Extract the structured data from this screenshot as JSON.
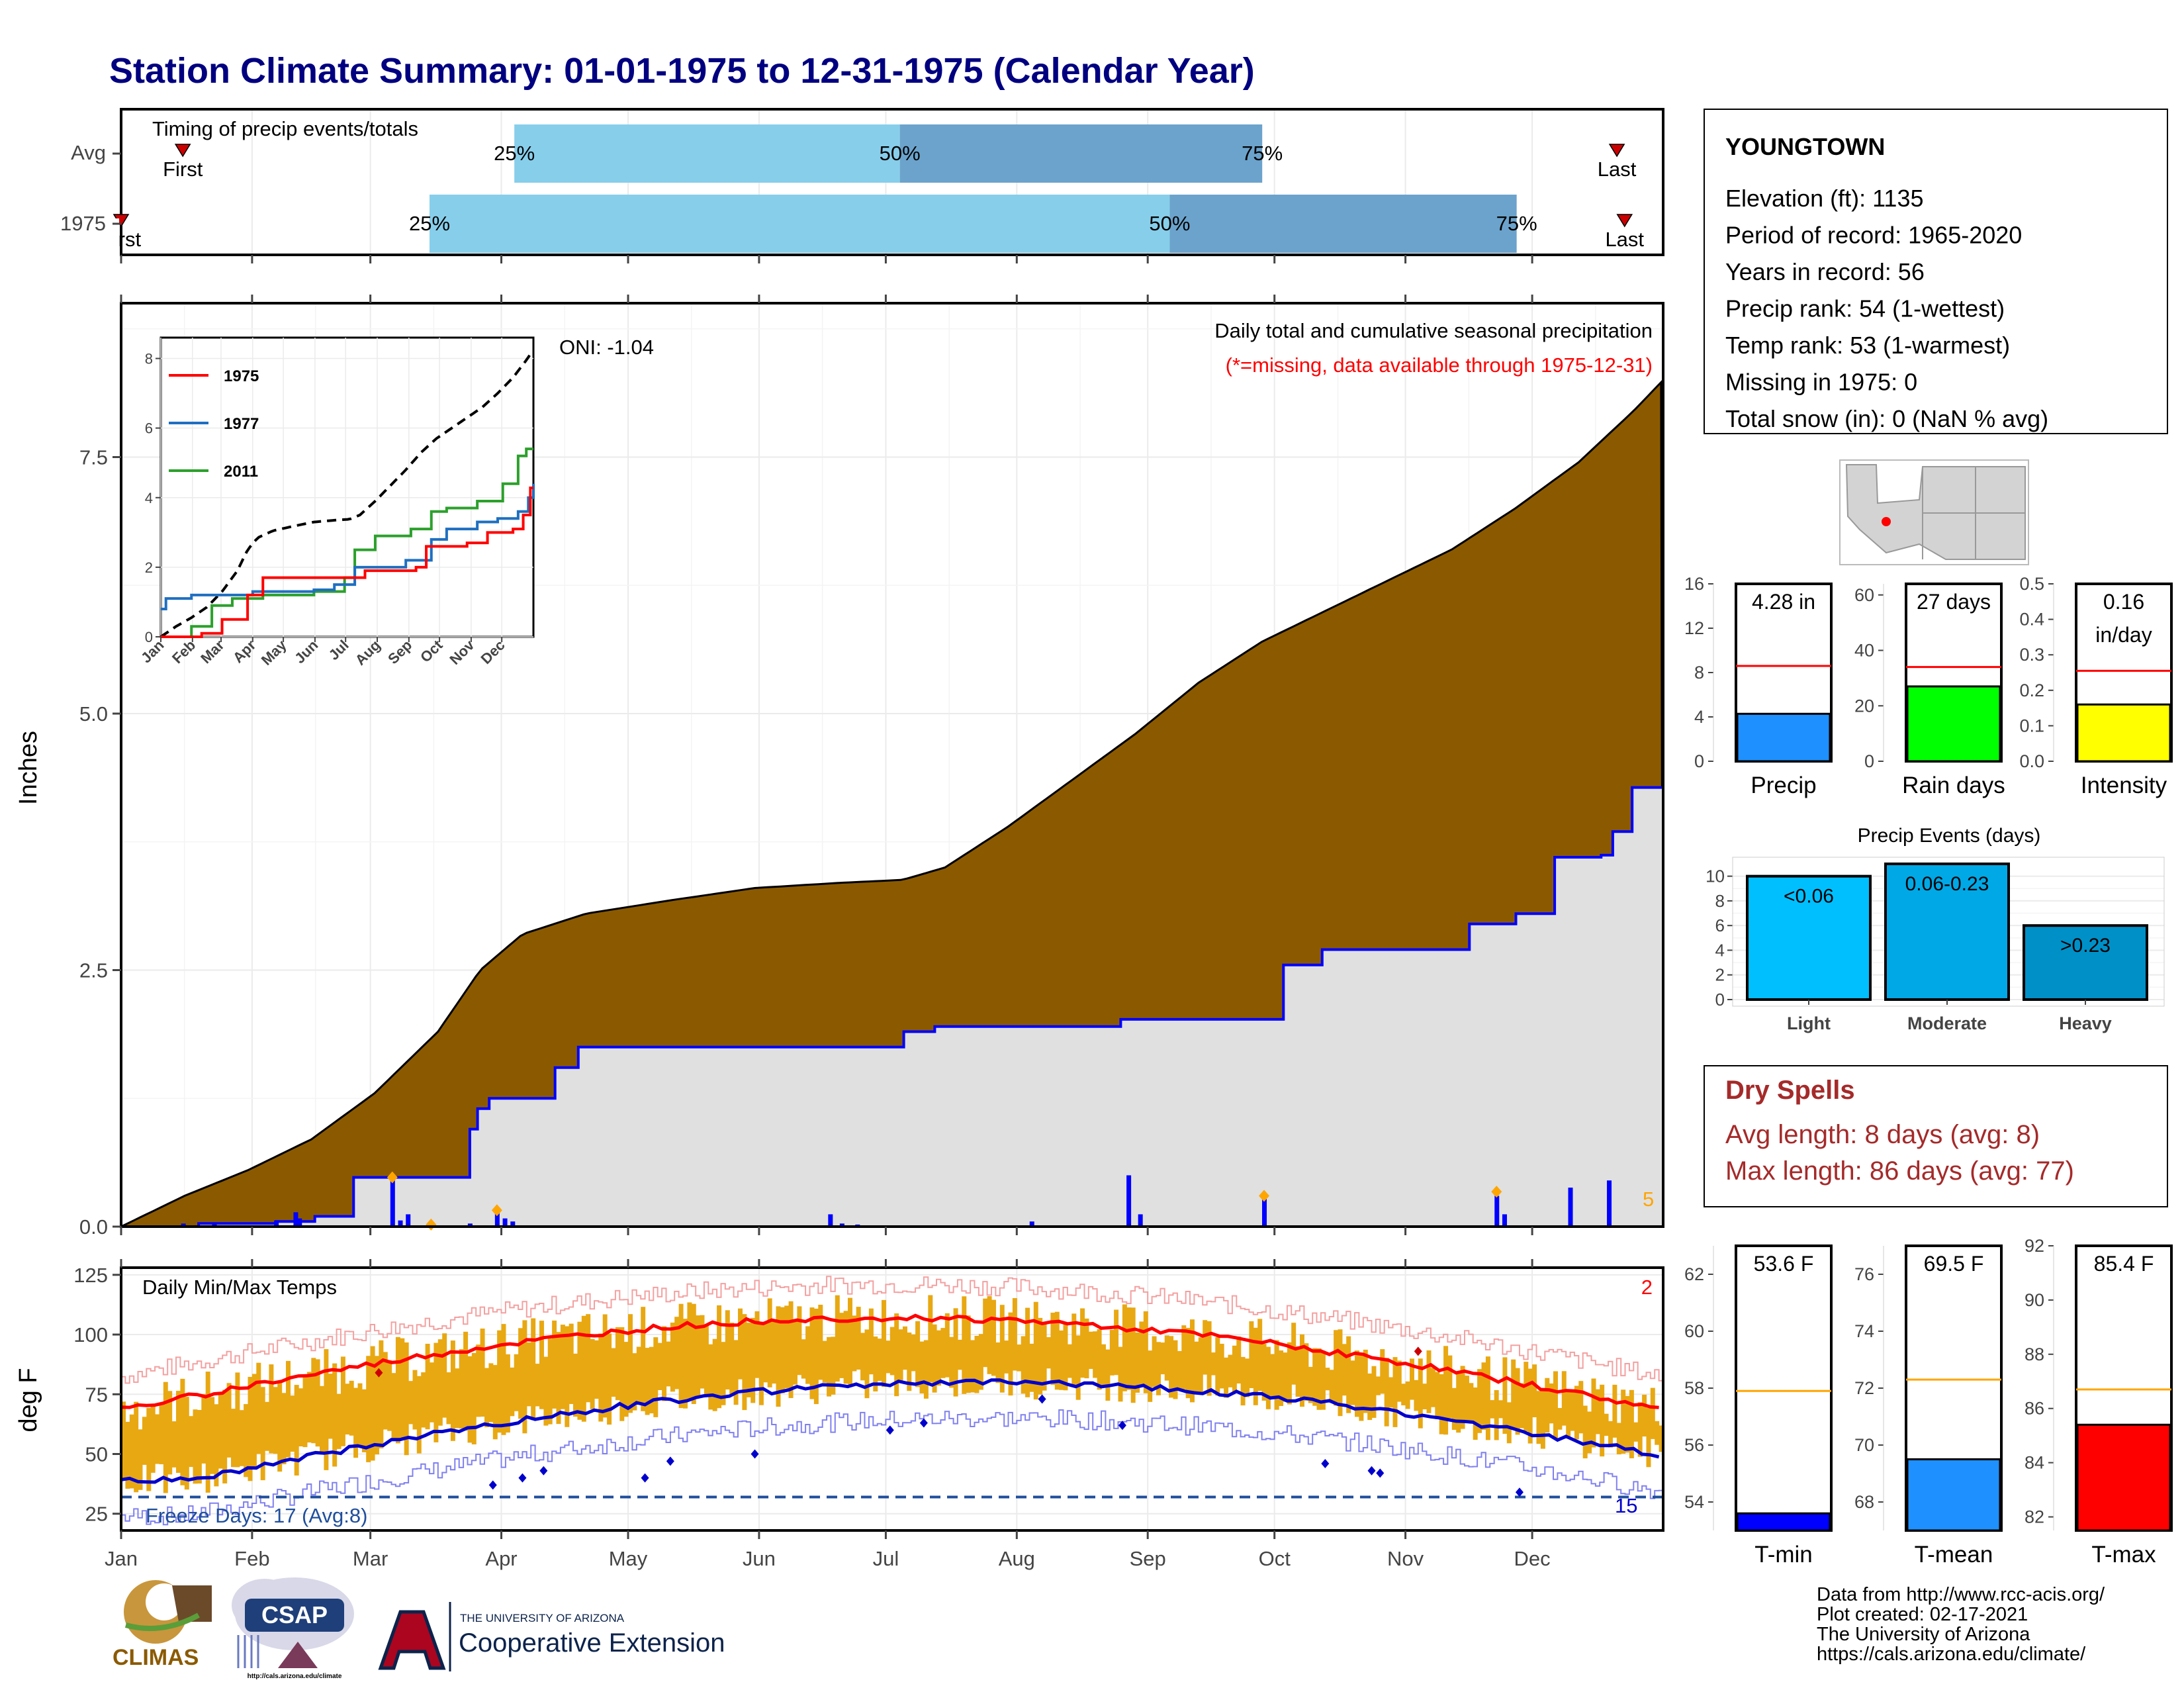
{
  "title": "Station Climate Summary: 01-01-1975 to 12-31-1975 (Calendar Year)",
  "colors": {
    "title": "#000080",
    "brown": "#8B5A00",
    "grey_fill": "#E0E0E0",
    "blue": "#0000FF",
    "orange": "#FFA500",
    "gold": "#E8A812",
    "red": "#FF0000",
    "light_blue": "#87CEEB",
    "mid_blue": "#6BA3CC",
    "precip_bar": "#1E90FF",
    "rain_bar": "#00FF00",
    "intensity_bar": "#FFFF00",
    "light_bar": "#00BFFF",
    "moderate_bar": "#00A8E6",
    "heavy_bar": "#0090C8",
    "dry_spells": "#A52A2A"
  },
  "months": [
    "Jan",
    "Feb",
    "Mar",
    "Apr",
    "May",
    "Jun",
    "Jul",
    "Aug",
    "Sep",
    "Oct",
    "Nov",
    "Dec"
  ],
  "timing": {
    "label": "Timing of precip events/totals",
    "rows": [
      {
        "label": "Avg",
        "q25": 0.255,
        "q50": 0.505,
        "q75": 0.74,
        "first": 0.04,
        "last": 0.97,
        "first_label": "First",
        "last_label": "Last",
        "q25_label": "25%",
        "q50_label": "50%",
        "q75_label": "75%"
      },
      {
        "label": "1975",
        "q25": 0.2,
        "q50": 0.68,
        "q75": 0.905,
        "first": 0.0,
        "last": 0.975,
        "first_label": "First",
        "last_label": "Last",
        "q25_label": "25%",
        "q50_label": "50%",
        "q75_label": "75%"
      }
    ]
  },
  "precip_panel": {
    "ylabel": "Inches",
    "yticks": [
      0,
      2.5,
      5,
      7.5
    ],
    "ytick_labels": [
      "0.0",
      "2.5",
      "5.0",
      "7.5"
    ],
    "ylim": [
      0,
      9
    ],
    "caption": "Daily total and cumulative seasonal precipitation",
    "missing_note": "(*=missing, data available through 1975-12-31)",
    "oni": "ONI: -1.04",
    "count_label": "5"
  },
  "inset": {
    "yticks": [
      0,
      2,
      4,
      6,
      8
    ],
    "series": [
      {
        "name": "1975",
        "color": "#FF0000"
      },
      {
        "name": "1977",
        "color": "#1F6FC0"
      },
      {
        "name": "2011",
        "color": "#2CA02C"
      }
    ]
  },
  "temp_panel": {
    "ylabel": "deg F",
    "label": "Daily Min/Max Temps",
    "yticks": [
      25,
      50,
      75,
      100,
      125
    ],
    "ylim": [
      18,
      128
    ],
    "freeze_label": "Freeze Days: 17 (Avg:8)",
    "freeze_line": 32,
    "count_top": "2",
    "count_bottom": "15"
  },
  "station": {
    "name": "YOUNGTOWN",
    "lines": [
      "Elevation (ft): 1135",
      "Period of record: 1965-2020",
      "Years in record: 56",
      "Precip rank: 54 (1-wettest)",
      "Temp rank: 53 (1-warmest)",
      "Missing in 1975: 0",
      "Total snow (in): 0 (NaN % avg)"
    ]
  },
  "stat_bars": [
    {
      "name": "Precip",
      "value_label": "4.28 in",
      "value": 4.28,
      "avg": 8.6,
      "yticks": [
        0,
        4,
        8,
        12,
        16
      ],
      "ylim": [
        0,
        16
      ],
      "color": "#1E90FF"
    },
    {
      "name": "Rain days",
      "value_label": "27 days",
      "value": 27,
      "avg": 34,
      "yticks": [
        0,
        20,
        40,
        60
      ],
      "ylim": [
        0,
        64
      ],
      "color": "#00FF00"
    },
    {
      "name": "Intensity",
      "value_label": "0.16",
      "value_label2": "in/day",
      "value": 0.16,
      "avg": 0.255,
      "yticks": [
        0.0,
        0.1,
        0.2,
        0.3,
        0.4,
        0.5
      ],
      "ytick_labels": [
        "0.0",
        "0.1",
        "0.2",
        "0.3",
        "0.4",
        "0.5"
      ],
      "ylim": [
        0,
        0.5
      ],
      "color": "#FFFF00"
    }
  ],
  "events": {
    "title": "Precip Events (days)",
    "yticks": [
      0,
      2,
      4,
      6,
      8,
      10
    ],
    "ylim": [
      0,
      11
    ],
    "bars": [
      {
        "name": "Light",
        "label": "<0.06",
        "value": 10,
        "color": "#00BFFF"
      },
      {
        "name": "Moderate",
        "label": "0.06-0.23",
        "value": 11,
        "color": "#00A8E6"
      },
      {
        "name": "Heavy",
        "label": ">0.23",
        "value": 6,
        "color": "#0090C8"
      }
    ]
  },
  "dry_spells": {
    "title": "Dry Spells",
    "avg": "Avg length: 8 days (avg: 8)",
    "max": "Max length: 86 days (avg: 77)"
  },
  "temp_bars": [
    {
      "name": "T-min",
      "value_label": "53.6 F",
      "value": 53.6,
      "avg": 57.9,
      "yticks": [
        54,
        56,
        58,
        60,
        62
      ],
      "ylim": [
        53,
        63
      ],
      "color": "#0000FF"
    },
    {
      "name": "T-mean",
      "value_label": "69.5 F",
      "value": 69.5,
      "avg": 72.3,
      "yticks": [
        68,
        70,
        72,
        74,
        76
      ],
      "ylim": [
        67,
        77
      ],
      "color": "#1E90FF"
    },
    {
      "name": "T-max",
      "value_label": "85.4 F",
      "value": 85.4,
      "avg": 86.7,
      "yticks": [
        82,
        84,
        86,
        88,
        90,
        92
      ],
      "ylim": [
        81.5,
        92
      ],
      "color": "#FF0000"
    }
  ],
  "footer": {
    "source": "Data from http://www.rcc-acis.org/",
    "created": "Plot created: 02-17-2021",
    "org": "The University of Arizona",
    "url": "https://cals.arizona.edu/climate/"
  },
  "logos": {
    "climas": "CLIMAS",
    "csap": "CSAP",
    "csap_url": "http://cals.arizona.edu/climate",
    "ua_small": "THE UNIVERSITY OF ARIZONA",
    "coop": "Cooperative Extension"
  }
}
